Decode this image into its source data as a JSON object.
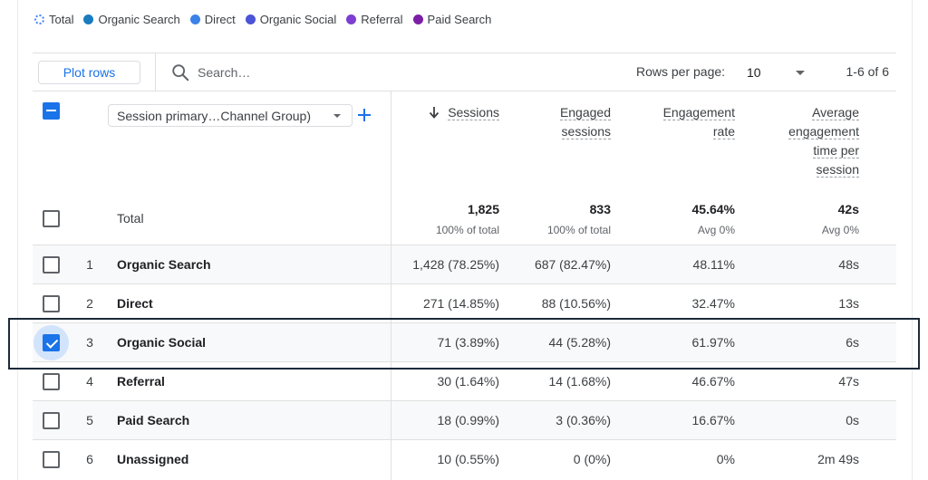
{
  "legend": [
    {
      "label": "Total",
      "color": "#4285f4",
      "dashed": true
    },
    {
      "label": "Organic Search",
      "color": "#1a7bbf"
    },
    {
      "label": "Direct",
      "color": "#3b82e8"
    },
    {
      "label": "Organic Social",
      "color": "#4b53d6"
    },
    {
      "label": "Referral",
      "color": "#7c3fd1"
    },
    {
      "label": "Paid Search",
      "color": "#7d1fa6"
    }
  ],
  "toolbar": {
    "plot_rows_label": "Plot rows",
    "search_placeholder": "Search…",
    "rows_per_page_label": "Rows per page:",
    "rows_per_page_value": "10",
    "page_range": "1-6 of 6"
  },
  "header": {
    "dimension_select": "Session primary…Channel Group)",
    "add_icon": "plus-icon",
    "sort_icon": "arrow-down-icon",
    "sessions": [
      "Sessions"
    ],
    "engaged_sessions": [
      "Engaged",
      "sessions"
    ],
    "engagement_rate": [
      "Engagement",
      "rate"
    ],
    "avg_time": [
      "Average",
      "engagement",
      "time per",
      "session"
    ]
  },
  "totals": {
    "label": "Total",
    "sessions": "1,825",
    "sessions_sub": "100% of total",
    "engaged": "833",
    "engaged_sub": "100% of total",
    "rate": "45.64%",
    "rate_sub": "Avg 0%",
    "avg_time": "42s",
    "avg_time_sub": "Avg 0%"
  },
  "rows": [
    {
      "num": "1",
      "name": "Organic Search",
      "sessions": "1,428 (78.25%)",
      "engaged": "687 (82.47%)",
      "rate": "48.11%",
      "avg_time": "48s",
      "checked": false
    },
    {
      "num": "2",
      "name": "Direct",
      "sessions": "271 (14.85%)",
      "engaged": "88 (10.56%)",
      "rate": "32.47%",
      "avg_time": "13s",
      "checked": false
    },
    {
      "num": "3",
      "name": "Organic Social",
      "sessions": "71 (3.89%)",
      "engaged": "44 (5.28%)",
      "rate": "61.97%",
      "avg_time": "6s",
      "checked": true
    },
    {
      "num": "4",
      "name": "Referral",
      "sessions": "30 (1.64%)",
      "engaged": "14 (1.68%)",
      "rate": "46.67%",
      "avg_time": "47s",
      "checked": false
    },
    {
      "num": "5",
      "name": "Paid Search",
      "sessions": "18 (0.99%)",
      "engaged": "3 (0.36%)",
      "rate": "16.67%",
      "avg_time": "0s",
      "checked": false
    },
    {
      "num": "6",
      "name": "Unassigned",
      "sessions": "10 (0.55%)",
      "engaged": "0 (0%)",
      "rate": "0%",
      "avg_time": "2m 49s",
      "checked": false
    }
  ]
}
